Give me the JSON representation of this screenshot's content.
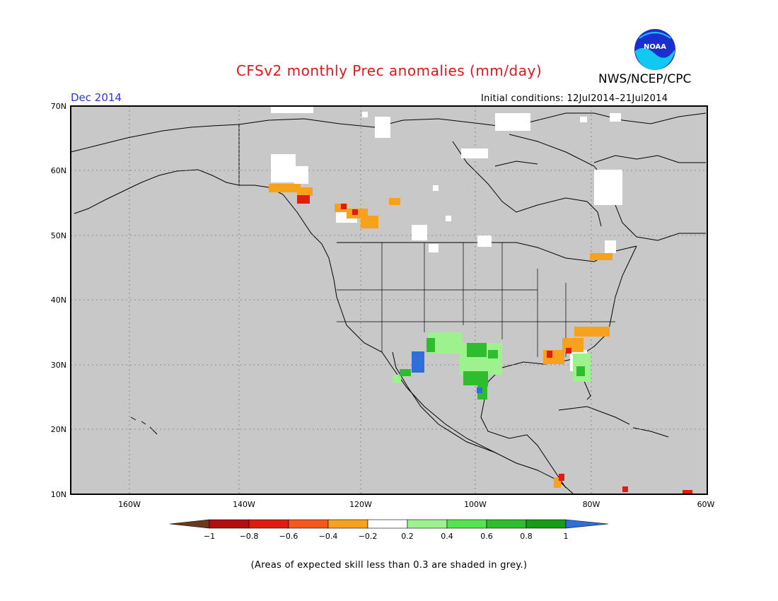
{
  "header": {
    "title": "CFSv2 monthly Prec anomalies (mm/day)",
    "agency": "NWS/NCEP/CPC",
    "month": "Dec 2014",
    "initial_conditions": "Initial conditions: 12Jul2014–21Jul2014",
    "logo_text": "NOAA"
  },
  "axes": {
    "lat_labels": [
      "70N",
      "60N",
      "50N",
      "40N",
      "30N",
      "20N",
      "10N"
    ],
    "lon_labels": [
      "160W",
      "140W",
      "120W",
      "100W",
      "80W",
      "60W"
    ]
  },
  "colorbar": {
    "ticks": [
      "−1",
      "−0.8",
      "−0.6",
      "−0.4",
      "−0.2",
      "0.2",
      "0.4",
      "0.6",
      "0.8",
      "1"
    ],
    "colors": [
      "#6b3a1e",
      "#b40f0f",
      "#de1d0f",
      "#f5581a",
      "#f8a11c",
      "#ffffff",
      "#9ef28e",
      "#54e450",
      "#2dbd2d",
      "#159e15",
      "#2e6fd9"
    ]
  },
  "footnote": "(Areas of expected skill less than 0.3 are shaded in grey.)",
  "colors": {
    "background_grey": "#c8c8c8",
    "title_red": "#e8141c",
    "month_blue": "#2a37d6"
  }
}
